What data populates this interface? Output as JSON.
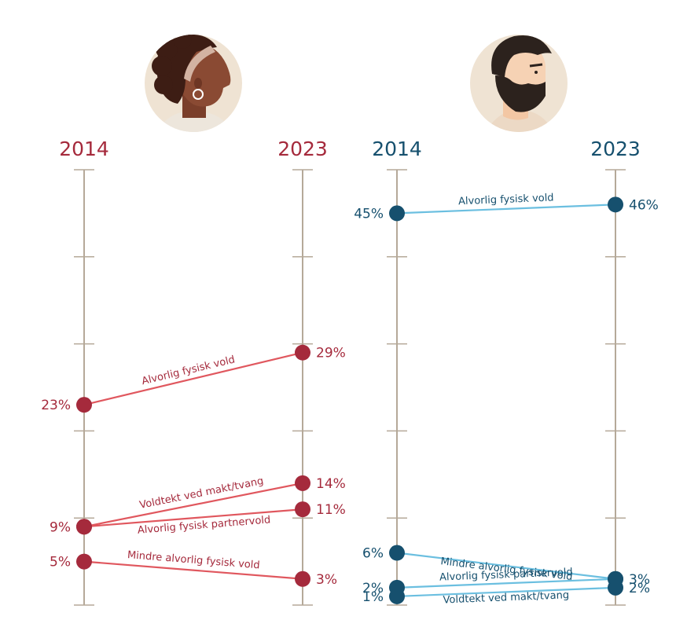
{
  "chart_data": [
    {
      "type": "slope",
      "group": "women",
      "x": [
        "2014",
        "2023"
      ],
      "ylim": [
        0,
        50
      ],
      "colors": {
        "axis_label": "#a52a3c",
        "marker": "#a52a3c",
        "line": "#e0575e",
        "value_label": "#a52a3c",
        "series_label": "#a52a3c"
      },
      "series": [
        {
          "name": "Alvorlig fysisk vold",
          "values": [
            23,
            29
          ],
          "value_labels": [
            "23%",
            "29%"
          ]
        },
        {
          "name": "Voldtekt ved makt/tvang",
          "values": [
            9,
            14
          ],
          "value_labels": [
            "9%",
            "14%"
          ]
        },
        {
          "name": "Alvorlig fysisk partnervold",
          "values": [
            9,
            11
          ],
          "value_labels": [
            "9%",
            "11%"
          ]
        },
        {
          "name": "Mindre alvorlig fysisk vold",
          "values": [
            5,
            3
          ],
          "value_labels": [
            "5%",
            "3%"
          ]
        }
      ]
    },
    {
      "type": "slope",
      "group": "men",
      "x": [
        "2014",
        "2023"
      ],
      "ylim": [
        0,
        50
      ],
      "colors": {
        "axis_label": "#16506e",
        "marker": "#16506e",
        "line": "#6bbfe0",
        "value_label": "#16506e",
        "series_label": "#16506e"
      },
      "series": [
        {
          "name": "Alvorlig fysisk vold",
          "values": [
            45,
            46
          ],
          "value_labels": [
            "45%",
            "46%"
          ]
        },
        {
          "name": "Mindre alvorlig fysisk vold",
          "values": [
            6,
            3
          ],
          "value_labels": [
            "6%",
            "3%"
          ]
        },
        {
          "name": "Alvorlig fysisk partnervold",
          "values": [
            2,
            3
          ],
          "value_labels": [
            "2%",
            "3%"
          ]
        },
        {
          "name": "Voldtekt ved makt/tvang",
          "values": [
            1,
            2
          ],
          "value_labels": [
            "1%",
            "2%"
          ]
        }
      ]
    }
  ],
  "icons": {
    "women": "woman-avatar-icon",
    "men": "man-avatar-icon"
  },
  "axis_color": "#b5a999"
}
